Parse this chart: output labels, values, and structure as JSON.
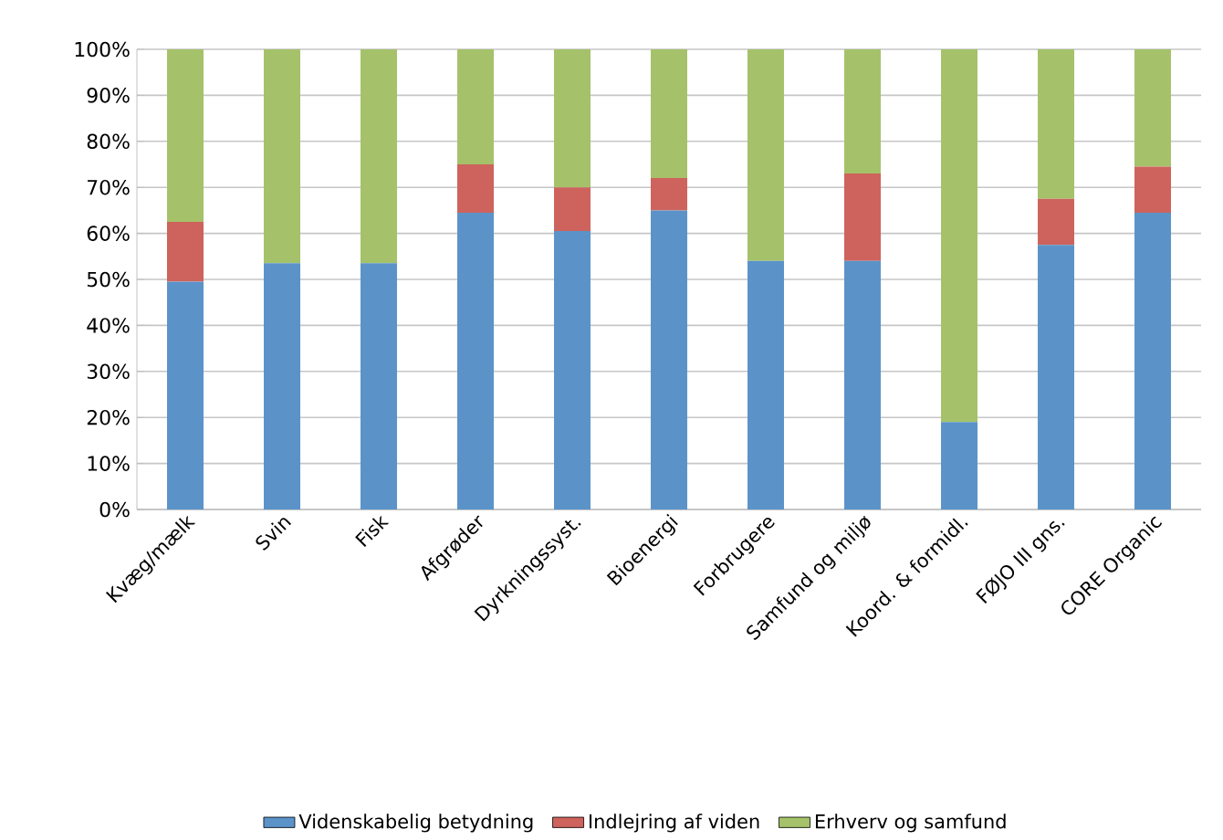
{
  "chart_data": {
    "type": "bar",
    "stacked": true,
    "categories": [
      "Kvæg/mælk",
      "Svin",
      "Fisk",
      "Afgrøder",
      "Dyrkningssyst.",
      "Bioenergi",
      "Forbrugere",
      "Samfund og miljø",
      "Koord. & formidl.",
      "FØJO III gns.",
      "CORE Organic"
    ],
    "series": [
      {
        "name": "Videnskabelig betydning",
        "color": "#5b93c9",
        "values": [
          49.5,
          53.5,
          53.5,
          64.5,
          60.5,
          65,
          54,
          54,
          19,
          57.5,
          64.5
        ]
      },
      {
        "name": "Indlejring af viden",
        "color": "#cd635c",
        "values": [
          13,
          0,
          0,
          10.5,
          9.5,
          7,
          0,
          19,
          0,
          10,
          10
        ]
      },
      {
        "name": "Erhverv og samfund",
        "color": "#a5c26a",
        "values": [
          37.5,
          46.5,
          46.5,
          25,
          30,
          28,
          46,
          27,
          81,
          32.5,
          25.5
        ]
      }
    ],
    "ylim": [
      0,
      100
    ],
    "yticks": [
      {
        "value": 0,
        "label": "0%"
      },
      {
        "value": 10,
        "label": "10%"
      },
      {
        "value": 20,
        "label": "20%"
      },
      {
        "value": 30,
        "label": "30%"
      },
      {
        "value": 40,
        "label": "40%"
      },
      {
        "value": 50,
        "label": "50%"
      },
      {
        "value": 60,
        "label": "60%"
      },
      {
        "value": 70,
        "label": "70%"
      },
      {
        "value": 80,
        "label": "80%"
      },
      {
        "value": 90,
        "label": "90%"
      },
      {
        "value": 100,
        "label": "100%"
      }
    ],
    "grid": "y",
    "legend": "bottom"
  }
}
